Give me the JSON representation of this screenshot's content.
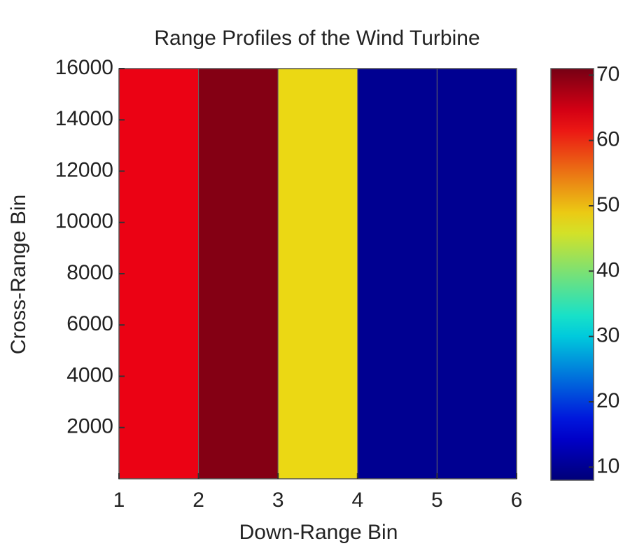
{
  "chart_data": {
    "type": "heatmap",
    "title": "Range Profiles of the Wind Turbine",
    "x_label": "Down-Range Bin",
    "y_label": "Cross-Range Bin",
    "x_edges": [
      1,
      2,
      3,
      4,
      5,
      6
    ],
    "values": [
      63,
      70,
      48,
      10,
      10
    ],
    "xlim": [
      1,
      6
    ],
    "xticks": [
      1,
      2,
      3,
      4,
      5,
      6
    ],
    "ylim": [
      0,
      16000
    ],
    "yticks": [
      2000,
      4000,
      6000,
      8000,
      10000,
      12000,
      14000,
      16000
    ],
    "colormap": "jet",
    "clim": [
      8,
      71
    ],
    "colorbar_ticks": [
      10,
      20,
      30,
      40,
      50,
      60,
      70
    ]
  }
}
